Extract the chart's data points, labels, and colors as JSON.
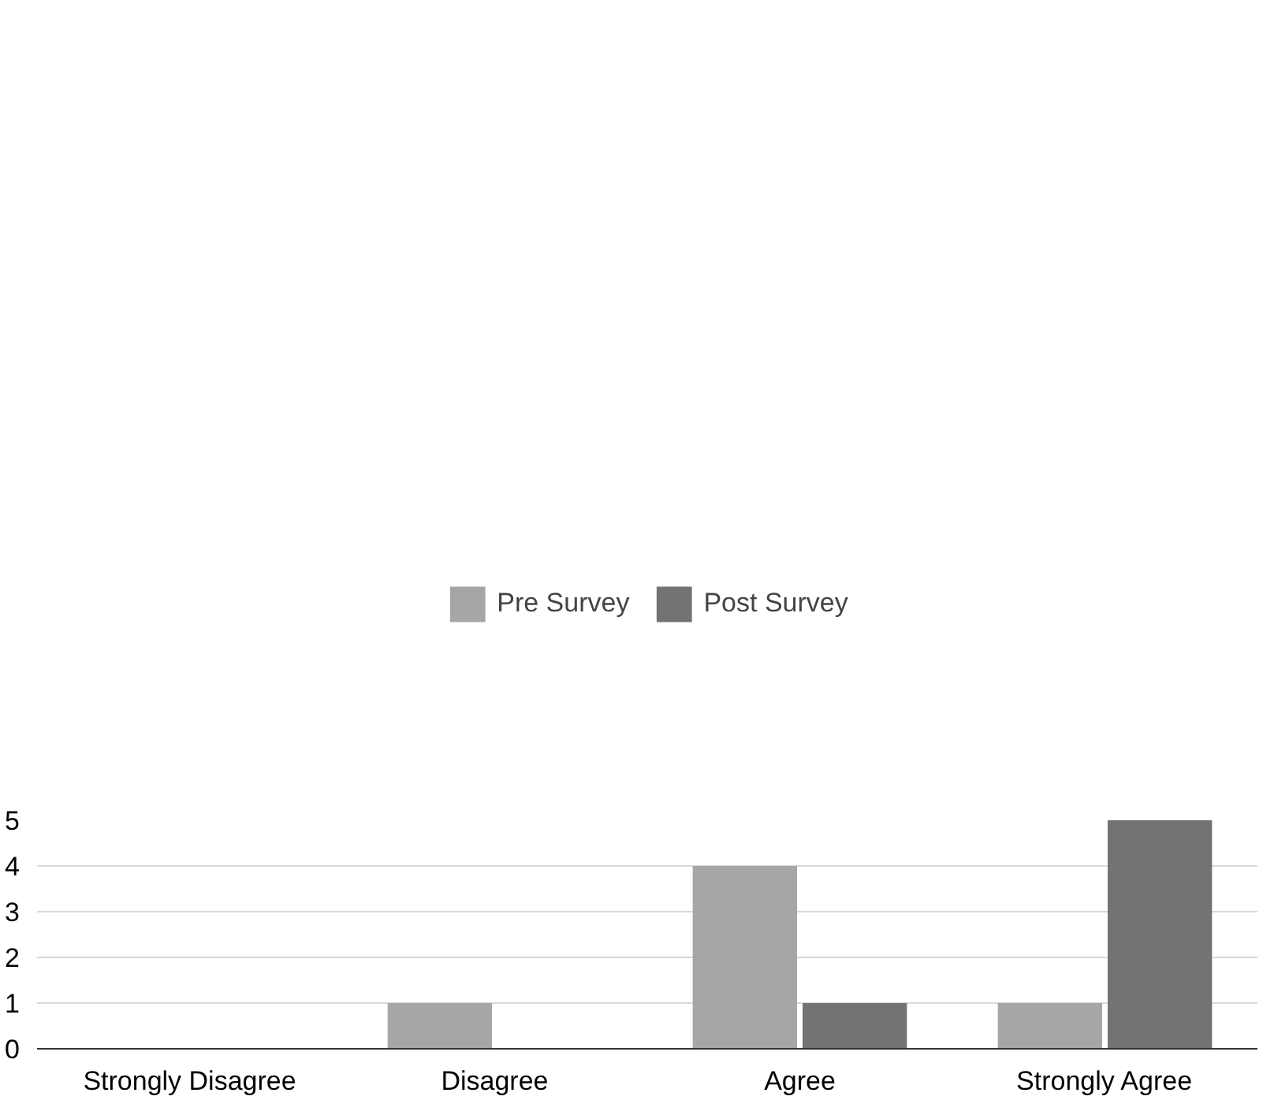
{
  "chart_data": {
    "type": "bar",
    "categories": [
      "Strongly Disagree",
      "Disagree",
      "Agree",
      "Strongly Agree"
    ],
    "series": [
      {
        "name": "Pre Survey",
        "color": "#a6a6a6",
        "values": [
          0,
          1,
          4,
          1
        ]
      },
      {
        "name": "Post Survey",
        "color": "#737373",
        "values": [
          0,
          0,
          1,
          5
        ]
      }
    ],
    "ylim": [
      0,
      5
    ],
    "yticks": [
      0,
      1,
      2,
      3,
      4,
      5
    ],
    "grid": "y",
    "legend": "top"
  }
}
